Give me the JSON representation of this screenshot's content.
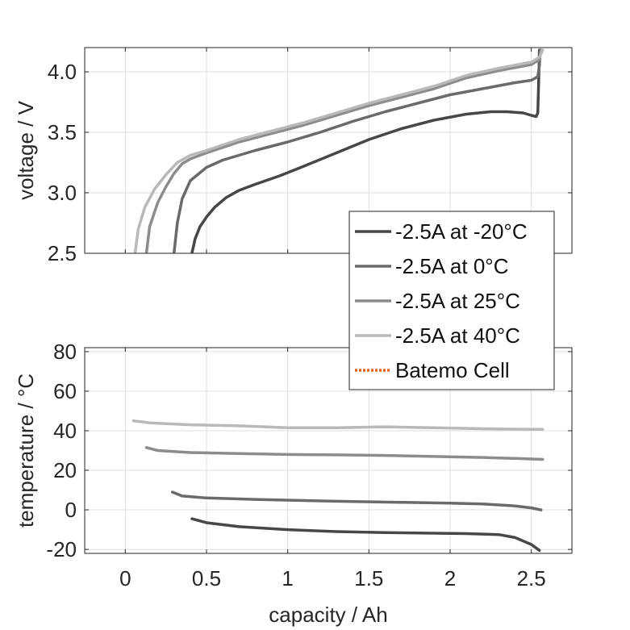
{
  "chart_data": [
    {
      "type": "line",
      "ylabel": "voltage / V",
      "xlim": [
        -0.25,
        2.75
      ],
      "ylim": [
        2.5,
        4.2
      ],
      "xticks": [
        0,
        0.5,
        1,
        1.5,
        2,
        2.5
      ],
      "yticks": [
        2.5,
        3.0,
        3.5,
        4.0
      ],
      "ytick_labels": [
        "2.5",
        "3.0",
        "3.5",
        "4.0"
      ],
      "grid": true,
      "series": [
        {
          "name": "-2.5A at -20°C",
          "color": "#474747",
          "x": [
            0.41,
            0.43,
            0.46,
            0.5,
            0.55,
            0.62,
            0.7,
            0.8,
            0.95,
            1.1,
            1.3,
            1.5,
            1.7,
            1.9,
            2.1,
            2.25,
            2.35,
            2.45,
            2.5,
            2.53,
            2.54,
            2.545,
            2.55
          ],
          "y": [
            2.5,
            2.62,
            2.72,
            2.8,
            2.88,
            2.96,
            3.02,
            3.07,
            3.14,
            3.22,
            3.33,
            3.44,
            3.53,
            3.6,
            3.65,
            3.67,
            3.67,
            3.66,
            3.64,
            3.63,
            3.66,
            3.9,
            4.18
          ]
        },
        {
          "name": "-2.5A at 0°C",
          "color": "#6a6a6a",
          "x": [
            0.3,
            0.32,
            0.35,
            0.4,
            0.5,
            0.6,
            0.8,
            1.0,
            1.2,
            1.4,
            1.6,
            1.8,
            2.0,
            2.2,
            2.4,
            2.5,
            2.54,
            2.55,
            2.555
          ],
          "y": [
            2.5,
            2.75,
            2.95,
            3.1,
            3.21,
            3.27,
            3.35,
            3.42,
            3.5,
            3.59,
            3.67,
            3.74,
            3.81,
            3.86,
            3.91,
            3.93,
            3.96,
            4.05,
            4.18
          ]
        },
        {
          "name": "-2.5A at 25°C",
          "color": "#8c8c8c",
          "x": [
            0.13,
            0.15,
            0.2,
            0.25,
            0.3,
            0.35,
            0.4,
            0.5,
            0.7,
            0.9,
            1.1,
            1.3,
            1.5,
            1.7,
            1.9,
            2.1,
            2.3,
            2.5,
            2.55,
            2.56
          ],
          "y": [
            2.5,
            2.72,
            2.92,
            3.05,
            3.16,
            3.24,
            3.28,
            3.33,
            3.42,
            3.49,
            3.56,
            3.64,
            3.72,
            3.79,
            3.86,
            3.95,
            4.01,
            4.06,
            4.1,
            4.18
          ]
        },
        {
          "name": "-2.5A at 40°C",
          "color": "#b9b9b9",
          "x": [
            0.06,
            0.08,
            0.12,
            0.18,
            0.25,
            0.32,
            0.4,
            0.5,
            0.7,
            0.9,
            1.1,
            1.3,
            1.5,
            1.7,
            1.9,
            2.1,
            2.3,
            2.5,
            2.55,
            2.57
          ],
          "y": [
            2.5,
            2.7,
            2.88,
            3.03,
            3.15,
            3.25,
            3.31,
            3.35,
            3.44,
            3.51,
            3.58,
            3.66,
            3.74,
            3.81,
            3.88,
            3.97,
            4.03,
            4.08,
            4.12,
            4.18
          ]
        }
      ]
    },
    {
      "type": "line",
      "xlabel": "capacity / Ah",
      "ylabel": "temperature / °C",
      "xlim": [
        -0.25,
        2.75
      ],
      "ylim": [
        -22,
        82
      ],
      "xticks": [
        0,
        0.5,
        1,
        1.5,
        2,
        2.5
      ],
      "xtick_labels": [
        "0",
        "0.5",
        "1",
        "1.5",
        "2",
        "2.5"
      ],
      "yticks": [
        -20,
        0,
        20,
        40,
        60,
        80
      ],
      "ytick_labels": [
        "-20",
        "0",
        "20",
        "40",
        "60",
        "80"
      ],
      "grid": true,
      "series": [
        {
          "name": "-2.5A at -20°C",
          "color": "#474747",
          "x": [
            0.41,
            0.5,
            0.7,
            1.0,
            1.3,
            1.6,
            1.9,
            2.1,
            2.3,
            2.4,
            2.5,
            2.55
          ],
          "y": [
            -4.5,
            -6.5,
            -8.5,
            -10,
            -11,
            -11.5,
            -11.8,
            -12,
            -12.5,
            -14,
            -17.5,
            -20.5
          ]
        },
        {
          "name": "-2.5A at 0°C",
          "color": "#6a6a6a",
          "x": [
            0.29,
            0.35,
            0.5,
            0.8,
            1.1,
            1.4,
            1.7,
            2.0,
            2.2,
            2.4,
            2.5,
            2.56
          ],
          "y": [
            9,
            7,
            6,
            5.3,
            4.7,
            4.2,
            3.8,
            3.4,
            3,
            2,
            1,
            0
          ]
        },
        {
          "name": "-2.5A at 25°C",
          "color": "#8c8c8c",
          "x": [
            0.13,
            0.2,
            0.4,
            0.7,
            1.0,
            1.3,
            1.6,
            1.9,
            2.2,
            2.4,
            2.57
          ],
          "y": [
            31.5,
            30,
            29,
            28.5,
            28,
            27.8,
            27.5,
            27,
            26.5,
            26,
            25.5
          ]
        },
        {
          "name": "-2.5A at 40°C",
          "color": "#b9b9b9",
          "x": [
            0.05,
            0.15,
            0.4,
            0.7,
            1.0,
            1.3,
            1.6,
            1.9,
            2.2,
            2.4,
            2.57
          ],
          "y": [
            45,
            44,
            43,
            42.5,
            41.5,
            41.5,
            42,
            41.5,
            41,
            40.8,
            40.7
          ]
        }
      ]
    }
  ],
  "legend": {
    "position": "lower-right of upper panel",
    "entries": [
      {
        "label": "-2.5A at -20°C",
        "color": "#474747",
        "style": "solid"
      },
      {
        "label": "-2.5A at 0°C",
        "color": "#6a6a6a",
        "style": "solid"
      },
      {
        "label": "-2.5A at 25°C",
        "color": "#8c8c8c",
        "style": "solid"
      },
      {
        "label": "-2.5A at 40°C",
        "color": "#b9b9b9",
        "style": "solid"
      },
      {
        "label": "Batemo Cell",
        "color": "#e8651a",
        "style": "dotted"
      }
    ]
  }
}
